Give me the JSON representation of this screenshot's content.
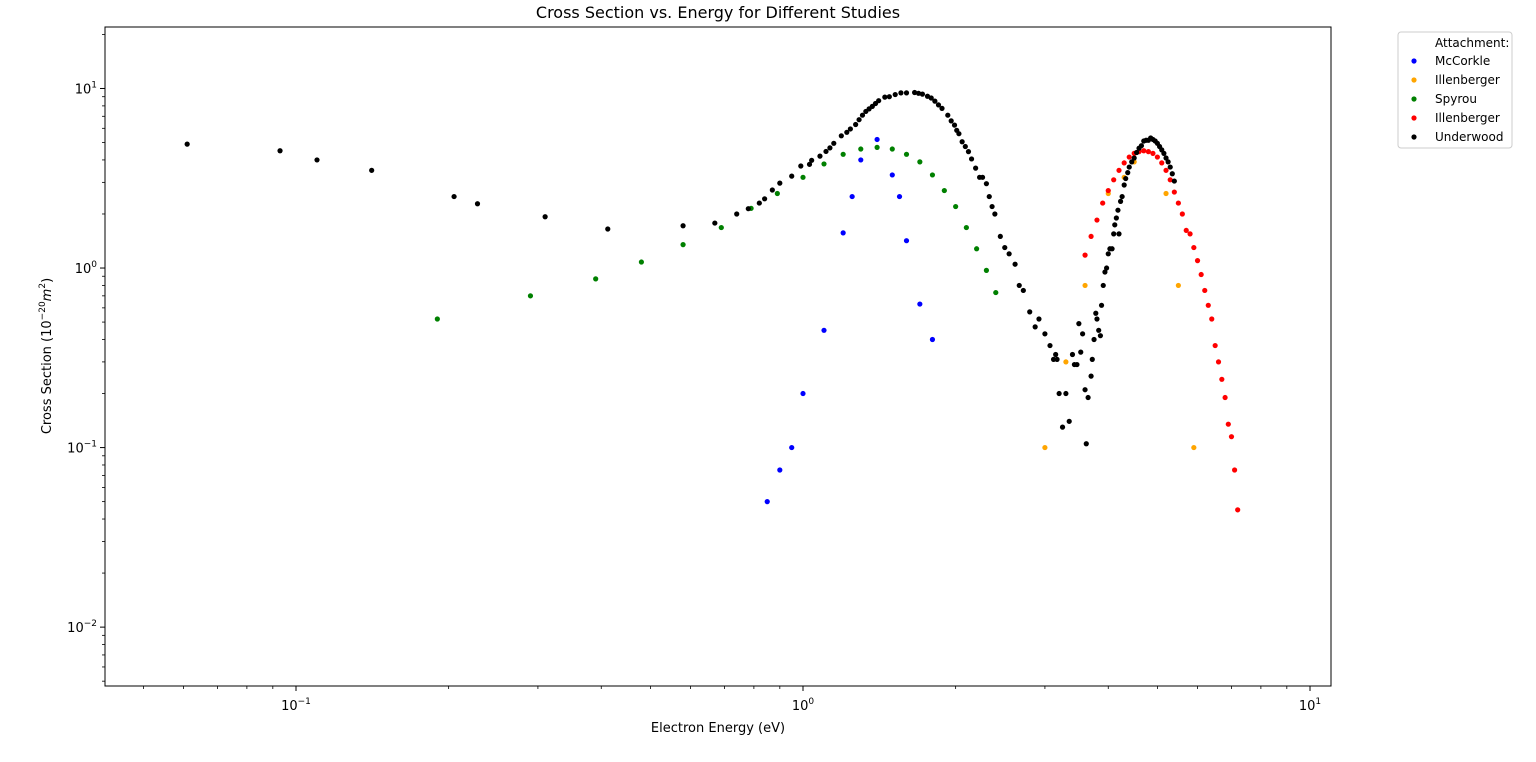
{
  "chart_data": {
    "type": "scatter",
    "title": "Cross Section vs. Energy for Different Studies",
    "xlabel": "Electron Energy (eV)",
    "ylabel_prefix": "Cross Section (10",
    "ylabel_exp": "−20",
    "ylabel_unit": "m",
    "ylabel_unit_exp": "2",
    "ylabel_suffix": ")",
    "xscale": "log",
    "yscale": "log",
    "xlim": [
      0.042,
      11.0
    ],
    "ylim": [
      0.0047,
      22.0
    ],
    "x_ticks": [
      {
        "value": 0.1,
        "base": "10",
        "exp": "−1"
      },
      {
        "value": 1,
        "base": "10",
        "exp": "0"
      },
      {
        "value": 10,
        "base": "10",
        "exp": "1"
      }
    ],
    "y_ticks": [
      {
        "value": 0.01,
        "base": "10",
        "exp": "−2"
      },
      {
        "value": 0.1,
        "base": "10",
        "exp": "−1"
      },
      {
        "value": 1,
        "base": "10",
        "exp": "0"
      },
      {
        "value": 10,
        "base": "10",
        "exp": "1"
      }
    ],
    "grid": false,
    "legend": {
      "title": "Attachment:",
      "placement": "outside-top-right"
    },
    "series": [
      {
        "name": "McCorkle",
        "color": "#0000ff",
        "points": [
          [
            0.85,
            0.05
          ],
          [
            0.9,
            0.075
          ],
          [
            0.95,
            0.1
          ],
          [
            1.0,
            0.2
          ],
          [
            1.1,
            0.45
          ],
          [
            1.2,
            1.57
          ],
          [
            1.25,
            2.5
          ],
          [
            1.3,
            4.0
          ],
          [
            1.4,
            5.2
          ],
          [
            1.5,
            3.3
          ],
          [
            1.55,
            2.5
          ],
          [
            1.6,
            1.42
          ],
          [
            1.7,
            0.63
          ],
          [
            1.8,
            0.4
          ]
        ]
      },
      {
        "name": "Illenberger",
        "color": "#ffa500",
        "points": [
          [
            3.0,
            0.1
          ],
          [
            3.3,
            0.3
          ],
          [
            3.6,
            0.8
          ],
          [
            4.0,
            2.6
          ],
          [
            4.3,
            3.2
          ],
          [
            4.5,
            3.9
          ],
          [
            5.2,
            2.6
          ],
          [
            5.5,
            0.8
          ],
          [
            5.9,
            0.1
          ]
        ]
      },
      {
        "name": "Spyrou",
        "color": "#008000",
        "points": [
          [
            0.19,
            0.52
          ],
          [
            0.29,
            0.7
          ],
          [
            0.39,
            0.87
          ],
          [
            0.48,
            1.08
          ],
          [
            0.58,
            1.35
          ],
          [
            0.69,
            1.68
          ],
          [
            0.79,
            2.15
          ],
          [
            0.89,
            2.6
          ],
          [
            1.0,
            3.2
          ],
          [
            1.1,
            3.8
          ],
          [
            1.2,
            4.3
          ],
          [
            1.3,
            4.6
          ],
          [
            1.4,
            4.7
          ],
          [
            1.5,
            4.6
          ],
          [
            1.6,
            4.3
          ],
          [
            1.7,
            3.9
          ],
          [
            1.8,
            3.3
          ],
          [
            1.9,
            2.7
          ],
          [
            2.0,
            2.2
          ],
          [
            2.1,
            1.68
          ],
          [
            2.2,
            1.28
          ],
          [
            2.3,
            0.97
          ],
          [
            2.4,
            0.73
          ]
        ]
      },
      {
        "name": "Illenberger",
        "color": "#ff0000",
        "points": [
          [
            3.6,
            1.18
          ],
          [
            3.7,
            1.5
          ],
          [
            3.8,
            1.85
          ],
          [
            3.9,
            2.3
          ],
          [
            4.0,
            2.7
          ],
          [
            4.1,
            3.1
          ],
          [
            4.2,
            3.5
          ],
          [
            4.3,
            3.85
          ],
          [
            4.4,
            4.15
          ],
          [
            4.5,
            4.35
          ],
          [
            4.6,
            4.45
          ],
          [
            4.7,
            4.5
          ],
          [
            4.8,
            4.45
          ],
          [
            4.9,
            4.35
          ],
          [
            5.0,
            4.15
          ],
          [
            5.1,
            3.85
          ],
          [
            5.2,
            3.5
          ],
          [
            5.3,
            3.1
          ],
          [
            5.4,
            2.65
          ],
          [
            5.5,
            2.3
          ],
          [
            5.6,
            2.0
          ],
          [
            5.7,
            1.62
          ],
          [
            5.8,
            1.55
          ],
          [
            5.9,
            1.3
          ],
          [
            6.0,
            1.1
          ],
          [
            6.1,
            0.92
          ],
          [
            6.2,
            0.75
          ],
          [
            6.3,
            0.62
          ],
          [
            6.4,
            0.52
          ],
          [
            6.5,
            0.37
          ],
          [
            6.6,
            0.3
          ],
          [
            6.7,
            0.24
          ],
          [
            6.8,
            0.19
          ],
          [
            6.9,
            0.135
          ],
          [
            7.0,
            0.115
          ],
          [
            7.1,
            0.075
          ],
          [
            7.2,
            0.045
          ]
        ]
      },
      {
        "name": "Underwood",
        "color": "#000000",
        "points": [
          [
            0.061,
            4.9
          ],
          [
            0.093,
            4.5
          ],
          [
            0.11,
            4.0
          ],
          [
            0.141,
            3.5
          ],
          [
            0.205,
            2.5
          ],
          [
            0.228,
            2.28
          ],
          [
            0.31,
            1.93
          ],
          [
            0.412,
            1.65
          ],
          [
            0.58,
            1.72
          ],
          [
            0.67,
            1.78
          ],
          [
            0.74,
            2.0
          ],
          [
            0.78,
            2.14
          ],
          [
            0.82,
            2.3
          ],
          [
            0.84,
            2.43
          ],
          [
            0.87,
            2.72
          ],
          [
            0.9,
            2.97
          ],
          [
            0.95,
            3.25
          ],
          [
            0.99,
            3.7
          ],
          [
            1.03,
            3.78
          ],
          [
            1.04,
            3.98
          ],
          [
            1.08,
            4.2
          ],
          [
            1.11,
            4.46
          ],
          [
            1.13,
            4.67
          ],
          [
            1.15,
            4.95
          ],
          [
            1.19,
            5.45
          ],
          [
            1.22,
            5.7
          ],
          [
            1.24,
            5.95
          ],
          [
            1.27,
            6.3
          ],
          [
            1.29,
            6.7
          ],
          [
            1.31,
            7.1
          ],
          [
            1.33,
            7.45
          ],
          [
            1.35,
            7.7
          ],
          [
            1.37,
            7.95
          ],
          [
            1.39,
            8.25
          ],
          [
            1.41,
            8.55
          ],
          [
            1.45,
            8.95
          ],
          [
            1.48,
            9.0
          ],
          [
            1.52,
            9.25
          ],
          [
            1.56,
            9.45
          ],
          [
            1.6,
            9.45
          ],
          [
            1.66,
            9.5
          ],
          [
            1.69,
            9.4
          ],
          [
            1.72,
            9.3
          ],
          [
            1.76,
            9.05
          ],
          [
            1.79,
            8.85
          ],
          [
            1.82,
            8.5
          ],
          [
            1.85,
            8.1
          ],
          [
            1.88,
            7.75
          ],
          [
            1.93,
            7.1
          ],
          [
            1.96,
            6.6
          ],
          [
            1.99,
            6.25
          ],
          [
            2.01,
            5.85
          ],
          [
            2.03,
            5.6
          ],
          [
            2.06,
            5.05
          ],
          [
            2.09,
            4.75
          ],
          [
            2.12,
            4.45
          ],
          [
            2.15,
            4.05
          ],
          [
            2.19,
            3.6
          ],
          [
            2.23,
            3.2
          ],
          [
            2.26,
            3.2
          ],
          [
            2.3,
            2.95
          ],
          [
            2.33,
            2.5
          ],
          [
            2.36,
            2.2
          ],
          [
            2.39,
            2.0
          ],
          [
            2.45,
            1.5
          ],
          [
            2.5,
            1.3
          ],
          [
            2.55,
            1.2
          ],
          [
            2.62,
            1.05
          ],
          [
            2.67,
            0.8
          ],
          [
            2.72,
            0.75
          ],
          [
            2.8,
            0.57
          ],
          [
            2.87,
            0.47
          ],
          [
            2.92,
            0.52
          ],
          [
            3.0,
            0.43
          ],
          [
            3.07,
            0.37
          ],
          [
            3.12,
            0.31
          ],
          [
            3.15,
            0.33
          ],
          [
            3.17,
            0.31
          ],
          [
            3.2,
            0.2
          ],
          [
            3.25,
            0.13
          ],
          [
            3.3,
            0.2
          ],
          [
            3.35,
            0.14
          ],
          [
            3.4,
            0.33
          ],
          [
            3.43,
            0.29
          ],
          [
            3.47,
            0.29
          ],
          [
            3.5,
            0.49
          ],
          [
            3.53,
            0.34
          ],
          [
            3.56,
            0.43
          ],
          [
            3.6,
            0.21
          ],
          [
            3.62,
            0.105
          ],
          [
            3.65,
            0.19
          ],
          [
            3.7,
            0.25
          ],
          [
            3.72,
            0.31
          ],
          [
            3.75,
            0.4
          ],
          [
            3.78,
            0.56
          ],
          [
            3.8,
            0.52
          ],
          [
            3.83,
            0.45
          ],
          [
            3.86,
            0.42
          ],
          [
            3.88,
            0.62
          ],
          [
            3.91,
            0.8
          ],
          [
            3.94,
            0.95
          ],
          [
            3.97,
            1.0
          ],
          [
            4.0,
            1.2
          ],
          [
            4.03,
            1.28
          ],
          [
            4.07,
            1.28
          ],
          [
            4.1,
            1.55
          ],
          [
            4.12,
            1.74
          ],
          [
            4.15,
            1.9
          ],
          [
            4.18,
            2.1
          ],
          [
            4.2,
            1.55
          ],
          [
            4.23,
            2.35
          ],
          [
            4.26,
            2.5
          ],
          [
            4.3,
            2.9
          ],
          [
            4.33,
            3.15
          ],
          [
            4.37,
            3.4
          ],
          [
            4.4,
            3.65
          ],
          [
            4.45,
            3.9
          ],
          [
            4.5,
            4.1
          ],
          [
            4.55,
            4.4
          ],
          [
            4.6,
            4.65
          ],
          [
            4.65,
            4.8
          ],
          [
            4.7,
            5.1
          ],
          [
            4.75,
            5.15
          ],
          [
            4.8,
            5.15
          ],
          [
            4.85,
            5.3
          ],
          [
            4.9,
            5.2
          ],
          [
            4.95,
            5.1
          ],
          [
            5.0,
            4.95
          ],
          [
            5.05,
            4.75
          ],
          [
            5.1,
            4.55
          ],
          [
            5.15,
            4.35
          ],
          [
            5.2,
            4.1
          ],
          [
            5.25,
            3.9
          ],
          [
            5.3,
            3.65
          ],
          [
            5.35,
            3.35
          ],
          [
            5.4,
            3.05
          ]
        ]
      }
    ]
  }
}
